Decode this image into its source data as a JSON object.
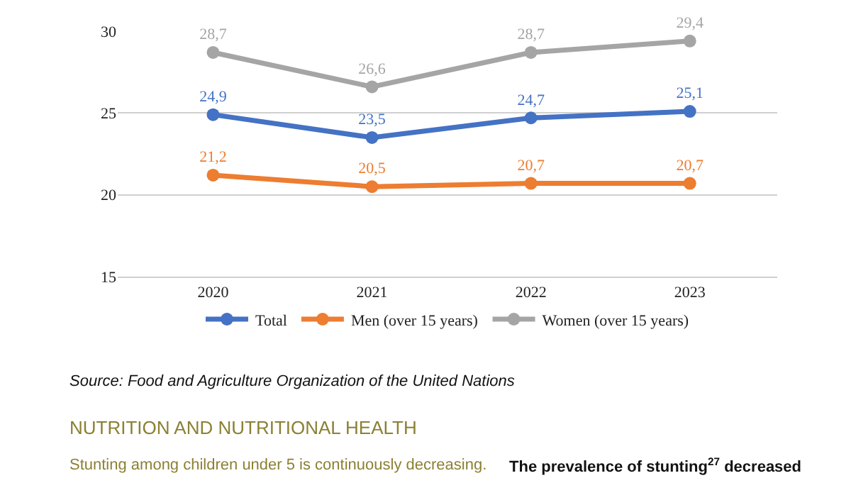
{
  "chart_data": {
    "type": "line",
    "categories": [
      "2020",
      "2021",
      "2022",
      "2023"
    ],
    "series": [
      {
        "name": "Total",
        "color": "#4472c4",
        "values": [
          24.9,
          23.5,
          24.7,
          25.1
        ],
        "value_labels": [
          "24,9",
          "23,5",
          "24,7",
          "25,1"
        ]
      },
      {
        "name": "Men (over 15 years)",
        "color": "#ed7d31",
        "values": [
          21.2,
          20.5,
          20.7,
          20.7
        ],
        "value_labels": [
          "21,2",
          "20,5",
          "20,7",
          "20,7"
        ]
      },
      {
        "name": "Women (over 15 years)",
        "color": "#a5a5a5",
        "values": [
          28.7,
          26.6,
          28.7,
          29.4
        ],
        "value_labels": [
          "28,7",
          "26,6",
          "28,7",
          "29,4"
        ]
      }
    ],
    "ylim": [
      15,
      30
    ],
    "yticks": [
      15,
      20,
      25,
      30
    ],
    "grid": "y",
    "legend": "bottom",
    "marker": "circle",
    "line_style": "solid",
    "annotations": [
      "Source: Food and Agriculture Organization of the United Nations",
      "NUTRITION AND NUTRITIONAL HEALTH",
      "Stunting among children under 5 is continuously decreasing.",
      "The prevalence of stunting$^{27}$ decreased"
    ]
  }
}
